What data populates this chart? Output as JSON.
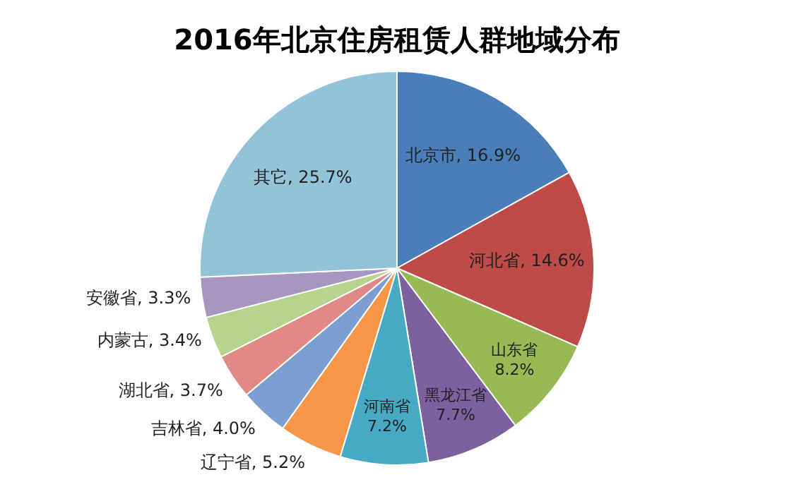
{
  "chart_data": {
    "type": "pie",
    "title": "2016年北京住房租赁人群地域分布",
    "categories": [
      "北京市",
      "河北省",
      "山东省",
      "黑龙江省",
      "河南省",
      "辽宁省",
      "吉林省",
      "湖北省",
      "内蒙古",
      "安徽省",
      "其它"
    ],
    "values": [
      16.9,
      14.6,
      8.2,
      7.7,
      7.2,
      5.2,
      4.0,
      3.7,
      3.4,
      3.3,
      25.7
    ],
    "value_labels": [
      "16.9%",
      "14.6%",
      "8.2%",
      "7.7%",
      "7.2%",
      "5.2%",
      "4.0%",
      "3.7%",
      "3.4%",
      "3.3%",
      "25.7%"
    ],
    "colors": [
      "#4a7ebb",
      "#be4b48",
      "#98b954",
      "#7d60a0",
      "#46aac5",
      "#f79646",
      "#7c9fd1",
      "#e08985",
      "#b7d48d",
      "#a895c0",
      "#93c3d8"
    ],
    "legend": false
  }
}
